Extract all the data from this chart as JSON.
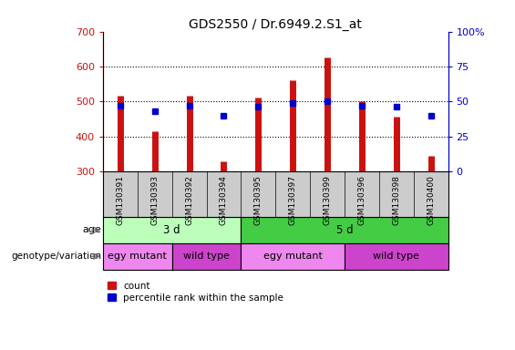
{
  "title": "GDS2550 / Dr.6949.2.S1_at",
  "samples": [
    "GSM130391",
    "GSM130393",
    "GSM130392",
    "GSM130394",
    "GSM130395",
    "GSM130397",
    "GSM130399",
    "GSM130396",
    "GSM130398",
    "GSM130400"
  ],
  "counts": [
    515,
    415,
    515,
    328,
    510,
    560,
    625,
    500,
    455,
    345
  ],
  "count_base": 300,
  "percentile_ranks": [
    47,
    43,
    47,
    40,
    46,
    49,
    50,
    47,
    46,
    40
  ],
  "percentile_scale_max": 100,
  "ylim_left": [
    300,
    700
  ],
  "yticks_left": [
    300,
    400,
    500,
    600,
    700
  ],
  "yticks_right": [
    0,
    25,
    50,
    75,
    100
  ],
  "bar_color": "#cc1111",
  "dot_color": "#0000cc",
  "age_groups": [
    {
      "label": "3 d",
      "start": 0,
      "end": 4,
      "color": "#bbffbb"
    },
    {
      "label": "5 d",
      "start": 4,
      "end": 10,
      "color": "#44cc44"
    }
  ],
  "genotype_groups": [
    {
      "label": "egy mutant",
      "start": 0,
      "end": 2,
      "color": "#ee88ee"
    },
    {
      "label": "wild type",
      "start": 2,
      "end": 4,
      "color": "#cc44cc"
    },
    {
      "label": "egy mutant",
      "start": 4,
      "end": 7,
      "color": "#ee88ee"
    },
    {
      "label": "wild type",
      "start": 7,
      "end": 10,
      "color": "#cc44cc"
    }
  ],
  "age_label": "age",
  "genotype_label": "genotype/variation",
  "legend_count_label": "count",
  "legend_percentile_label": "percentile rank within the sample",
  "tick_color_left": "#cc1111",
  "tick_color_right": "#0000cc",
  "grid_color": "black",
  "bg_color": "white",
  "panel_bg": "#cccccc"
}
